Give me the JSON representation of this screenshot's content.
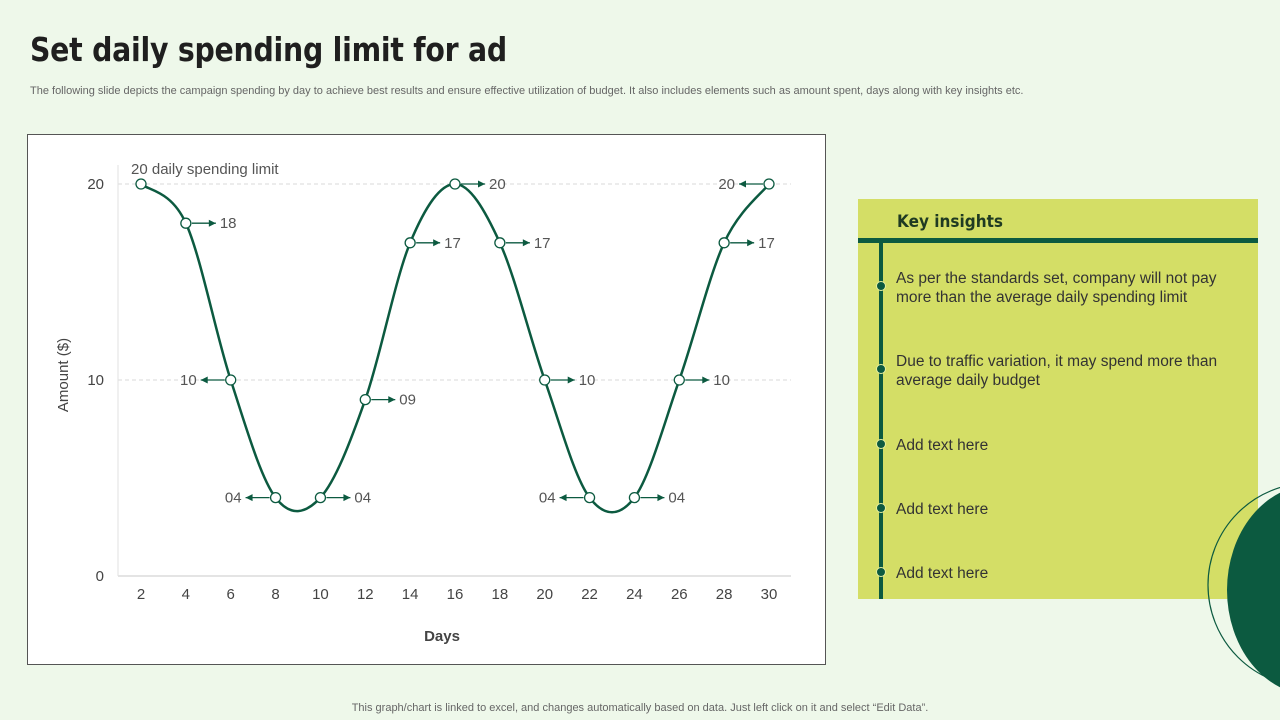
{
  "slide": {
    "title": "Set daily spending limit for ad",
    "subtitle": "The following slide depicts the campaign spending by day to achieve best results and ensure effective utilization of budget. It also includes elements such as amount spent, days along with key insights etc.",
    "footer": "This graph/chart is linked to excel,  and changes automatically based on data. Just left click on it and select “Edit Data”."
  },
  "colors": {
    "background": "#eef8ea",
    "line": "#0c5a40",
    "panel": "#d4de66",
    "accent_dark": "#0c5a40"
  },
  "chart_data": {
    "type": "line",
    "xlabel": "Days",
    "ylabel": "Amount ($)",
    "annotation": "20 daily spending limit",
    "x": [
      2,
      4,
      6,
      8,
      10,
      12,
      14,
      16,
      18,
      20,
      22,
      24,
      26,
      28,
      30
    ],
    "series": [
      {
        "values": [
          20,
          18,
          10,
          4,
          4,
          9,
          17,
          20,
          17,
          10,
          4,
          4,
          10,
          17,
          20
        ]
      }
    ],
    "data_labels": [
      "",
      "18",
      "10",
      "04",
      "04",
      "09",
      "17",
      "20",
      "17",
      "10",
      "04",
      "04",
      "10",
      "17",
      "20"
    ],
    "label_side": [
      "",
      "right",
      "left",
      "left",
      "right",
      "right",
      "right",
      "right",
      "right",
      "right",
      "left",
      "right",
      "right",
      "right",
      "left"
    ],
    "yticks": [
      0,
      10,
      20
    ],
    "ylim": [
      0,
      20
    ],
    "xlim": [
      2,
      30
    ],
    "grid": "dashed horizontal"
  },
  "insights": {
    "title": "Key insights",
    "items": [
      "As per the standards set, company will not pay more than the average daily spending limit",
      "Due to traffic variation, it may spend more than average daily budget",
      "Add text here",
      "Add text here",
      "Add text here"
    ]
  }
}
